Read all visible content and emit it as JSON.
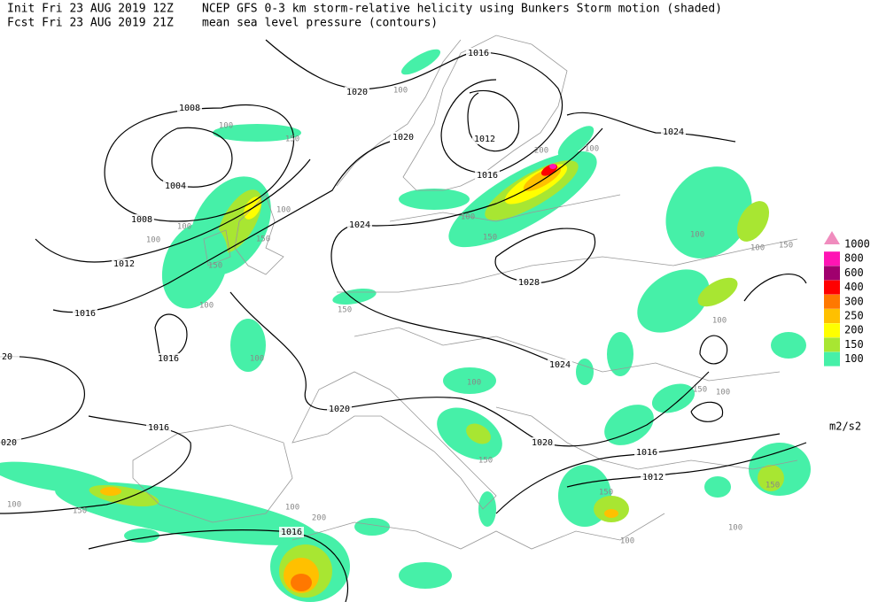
{
  "header": {
    "init": "Init  Fri 23 AUG 2019 12Z",
    "fcst": "Fcst Fri 23 AUG 2019 21Z",
    "title": "NCEP GFS 0-3 km storm-relative helicity using Bunkers Storm motion (shaded)",
    "subtitle": "mean sea level pressure (contours)"
  },
  "legend": {
    "levels": [
      "1000",
      "800",
      "600",
      "400",
      "300",
      "250",
      "200",
      "150",
      "100"
    ],
    "colors": [
      "#f08cbe",
      "#ff14b4",
      "#a0006e",
      "#ff0000",
      "#ff7800",
      "#ffc000",
      "#ffff00",
      "#a8e632",
      "#46f0a8"
    ],
    "unit": "m2/s2"
  },
  "isobar_labels": [
    "1016",
    "1020",
    "1008",
    "1004",
    "1008",
    "1012",
    "1016",
    "1016",
    "1020",
    "1012",
    "1016",
    "1024",
    "1024",
    "1028",
    "1024",
    "1020",
    "1016",
    "1020",
    "1016",
    "1012",
    "1016",
    "20",
    "020"
  ],
  "helicity_labels": [
    "100",
    "100",
    "150",
    "100",
    "100",
    "150",
    "100",
    "100",
    "150",
    "100",
    "150",
    "200",
    "100",
    "100",
    "150",
    "100",
    "100",
    "150",
    "100",
    "150",
    "100",
    "100",
    "200",
    "150",
    "150",
    "100",
    "150",
    "150",
    "100",
    "100",
    "100"
  ]
}
